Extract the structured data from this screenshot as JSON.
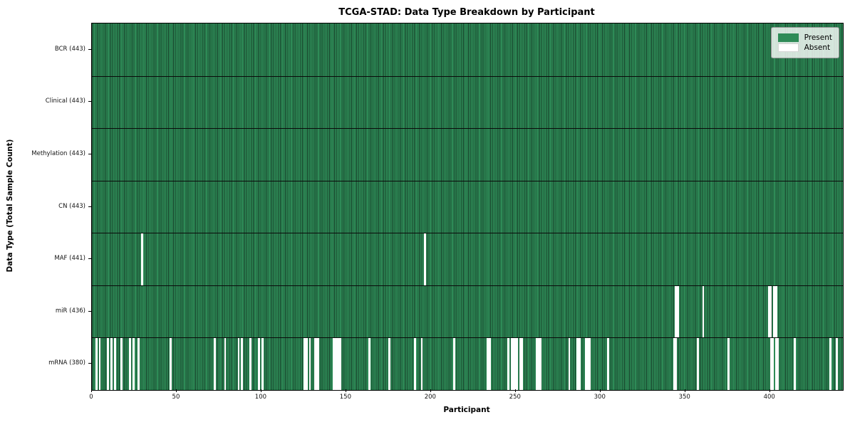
{
  "title": "TCGA-STAD: Data Type Breakdown by Participant",
  "xlabel": "Participant",
  "ylabel": "Data Type (Total Sample Count)",
  "legend": {
    "present_label": "Present",
    "absent_label": "Absent"
  },
  "colors": {
    "present": "#2e8b57",
    "present_edge": "#17402a",
    "absent": "#ffffff"
  },
  "chart_data": {
    "type": "heatmap",
    "title": "TCGA-STAD: Data Type Breakdown by Participant",
    "xlabel": "Participant",
    "ylabel": "Data Type (Total Sample Count)",
    "legend_entries": [
      "Present",
      "Absent"
    ],
    "legend_position": "upper right",
    "grid": false,
    "n_participants": 443,
    "x_axis": {
      "range": [
        0,
        443
      ],
      "ticks": [
        0,
        50,
        100,
        150,
        200,
        250,
        300,
        350,
        400
      ]
    },
    "rows": [
      {
        "label": "BCR (443)",
        "data_type": "BCR",
        "present_count": 443,
        "absent_count": 0,
        "absent_participants": []
      },
      {
        "label": "Clinical (443)",
        "data_type": "Clinical",
        "present_count": 443,
        "absent_count": 0,
        "absent_participants": []
      },
      {
        "label": "Methylation (443)",
        "data_type": "Methylation",
        "present_count": 443,
        "absent_count": 0,
        "absent_participants": []
      },
      {
        "label": "CN (443)",
        "data_type": "CN",
        "present_count": 443,
        "absent_count": 0,
        "absent_participants": []
      },
      {
        "label": "MAF (441)",
        "data_type": "MAF",
        "present_count": 441,
        "absent_count": 2,
        "absent_participants": [
          29,
          196
        ]
      },
      {
        "label": "miR (436)",
        "data_type": "miR",
        "present_count": 436,
        "absent_count": 7,
        "absent_participants": [
          344,
          345,
          360,
          399,
          400,
          402,
          403
        ]
      },
      {
        "label": "mRNA (380)",
        "data_type": "mRNA",
        "present_count": 380,
        "absent_count": 63,
        "absent_participants": [
          2,
          4,
          9,
          11,
          13,
          17,
          22,
          24,
          27,
          46,
          72,
          78,
          86,
          88,
          93,
          98,
          100,
          125,
          126,
          128,
          131,
          132,
          133,
          142,
          143,
          144,
          145,
          146,
          163,
          175,
          190,
          194,
          213,
          233,
          234,
          245,
          247,
          248,
          249,
          250,
          252,
          253,
          262,
          263,
          264,
          281,
          286,
          287,
          291,
          292,
          293,
          304,
          343,
          344,
          357,
          375,
          400,
          401,
          403,
          404,
          414,
          435,
          439
        ]
      }
    ]
  }
}
